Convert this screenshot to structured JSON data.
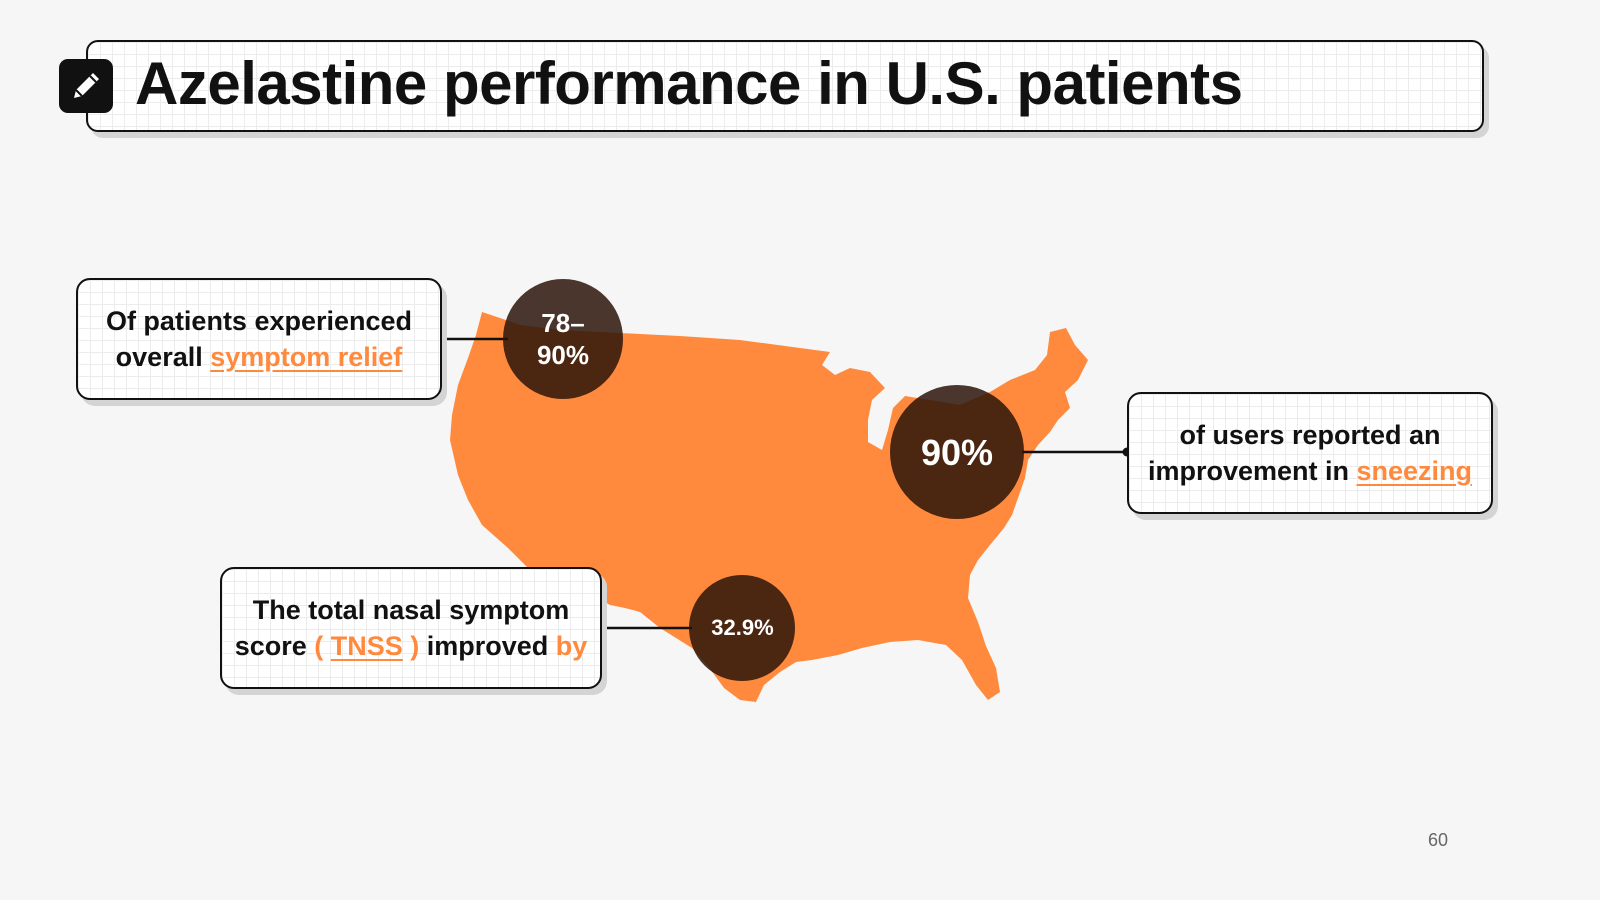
{
  "title": "Azelastine performance in U.S. patients",
  "icon": "pencil-icon",
  "accent_color": "#ff8a3d",
  "bubble_color": "#3a1a0a",
  "stats": [
    {
      "value_line1": "78–",
      "value_line2": "90%",
      "text_line1": "Of patients experienced",
      "text_line2_pre": "overall ",
      "highlight": "symptom relief"
    },
    {
      "value": "90%",
      "text_line1": "of users reported an",
      "text_line2_pre": "improvement in ",
      "highlight": "sneezing"
    },
    {
      "value": "32.9%",
      "text_line1": "The total nasal symptom",
      "text_line2_pre": "score ",
      "paren_open": "( ",
      "highlight": "TNSS",
      "paren_close": " )",
      "text_line2_mid": " improved ",
      "text_line2_end": "by"
    }
  ],
  "page_number": "60"
}
